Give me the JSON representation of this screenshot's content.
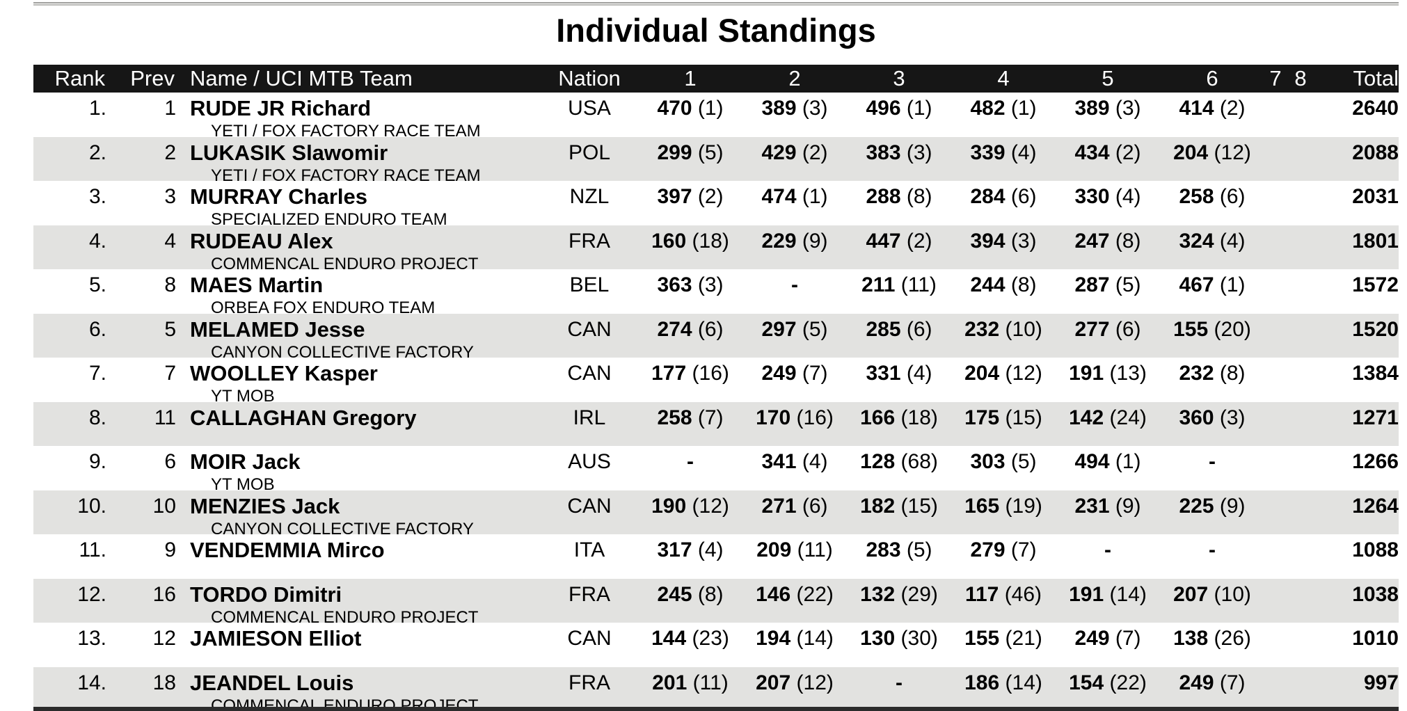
{
  "title": "Individual Standings",
  "columns": [
    "Rank",
    "Prev",
    "Name / UCI MTB Team",
    "Nation",
    "1",
    "2",
    "3",
    "4",
    "5",
    "6",
    "7",
    "8",
    "Total"
  ],
  "colors": {
    "header_bg": "#161616",
    "row_alt": "#e2e2e0",
    "text": "#000000"
  },
  "standings": [
    {
      "rank": "1.",
      "prev": "1",
      "name": "RUDE JR Richard",
      "team": "YETI / FOX FACTORY RACE TEAM",
      "nation": "USA",
      "races": [
        "470 (1)",
        "389 (3)",
        "496 (1)",
        "482 (1)",
        "389 (3)",
        "414 (2)"
      ],
      "race7": "",
      "race8": "",
      "total": "2640"
    },
    {
      "rank": "2.",
      "prev": "2",
      "name": "LUKASIK Slawomir",
      "team": "YETI / FOX FACTORY RACE TEAM",
      "nation": "POL",
      "races": [
        "299 (5)",
        "429 (2)",
        "383 (3)",
        "339 (4)",
        "434 (2)",
        "204 (12)"
      ],
      "race7": "",
      "race8": "",
      "total": "2088"
    },
    {
      "rank": "3.",
      "prev": "3",
      "name": "MURRAY Charles",
      "team": "SPECIALIZED ENDURO TEAM",
      "nation": "NZL",
      "races": [
        "397 (2)",
        "474 (1)",
        "288 (8)",
        "284 (6)",
        "330 (4)",
        "258 (6)"
      ],
      "race7": "",
      "race8": "",
      "total": "2031"
    },
    {
      "rank": "4.",
      "prev": "4",
      "name": "RUDEAU Alex",
      "team": "COMMENCAL ENDURO PROJECT",
      "nation": "FRA",
      "races": [
        "160 (18)",
        "229 (9)",
        "447 (2)",
        "394 (3)",
        "247 (8)",
        "324 (4)"
      ],
      "race7": "",
      "race8": "",
      "total": "1801"
    },
    {
      "rank": "5.",
      "prev": "8",
      "name": "MAES Martin",
      "team": "ORBEA FOX ENDURO TEAM",
      "nation": "BEL",
      "races": [
        "363 (3)",
        "-",
        "211 (11)",
        "244 (8)",
        "287 (5)",
        "467 (1)"
      ],
      "race7": "",
      "race8": "",
      "total": "1572"
    },
    {
      "rank": "6.",
      "prev": "5",
      "name": "MELAMED Jesse",
      "team": "CANYON COLLECTIVE FACTORY",
      "nation": "CAN",
      "races": [
        "274 (6)",
        "297 (5)",
        "285 (6)",
        "232 (10)",
        "277 (6)",
        "155 (20)"
      ],
      "race7": "",
      "race8": "",
      "total": "1520"
    },
    {
      "rank": "7.",
      "prev": "7",
      "name": "WOOLLEY Kasper",
      "team": "YT MOB",
      "nation": "CAN",
      "races": [
        "177 (16)",
        "249 (7)",
        "331 (4)",
        "204 (12)",
        "191 (13)",
        "232 (8)"
      ],
      "race7": "",
      "race8": "",
      "total": "1384"
    },
    {
      "rank": "8.",
      "prev": "11",
      "name": "CALLAGHAN Gregory",
      "team": "",
      "nation": "IRL",
      "races": [
        "258 (7)",
        "170 (16)",
        "166 (18)",
        "175 (15)",
        "142 (24)",
        "360 (3)"
      ],
      "race7": "",
      "race8": "",
      "total": "1271"
    },
    {
      "rank": "9.",
      "prev": "6",
      "name": "MOIR Jack",
      "team": "YT MOB",
      "nation": "AUS",
      "races": [
        "-",
        "341 (4)",
        "128 (68)",
        "303 (5)",
        "494 (1)",
        "-"
      ],
      "race7": "",
      "race8": "",
      "total": "1266"
    },
    {
      "rank": "10.",
      "prev": "10",
      "name": "MENZIES Jack",
      "team": "CANYON COLLECTIVE FACTORY",
      "nation": "CAN",
      "races": [
        "190 (12)",
        "271 (6)",
        "182 (15)",
        "165 (19)",
        "231 (9)",
        "225 (9)"
      ],
      "race7": "",
      "race8": "",
      "total": "1264"
    },
    {
      "rank": "11.",
      "prev": "9",
      "name": "VENDEMMIA Mirco",
      "team": "",
      "nation": "ITA",
      "races": [
        "317 (4)",
        "209 (11)",
        "283 (5)",
        "279 (7)",
        "-",
        "-"
      ],
      "race7": "",
      "race8": "",
      "total": "1088"
    },
    {
      "rank": "12.",
      "prev": "16",
      "name": "TORDO Dimitri",
      "team": "COMMENCAL ENDURO PROJECT",
      "nation": "FRA",
      "races": [
        "245 (8)",
        "146 (22)",
        "132 (29)",
        "117 (46)",
        "191 (14)",
        "207 (10)"
      ],
      "race7": "",
      "race8": "",
      "total": "1038"
    },
    {
      "rank": "13.",
      "prev": "12",
      "name": "JAMIESON Elliot",
      "team": "",
      "nation": "CAN",
      "races": [
        "144 (23)",
        "194 (14)",
        "130 (30)",
        "155 (21)",
        "249 (7)",
        "138 (26)"
      ],
      "race7": "",
      "race8": "",
      "total": "1010"
    },
    {
      "rank": "14.",
      "prev": "18",
      "name": "JEANDEL Louis",
      "team": "COMMENCAL ENDURO PROJECT",
      "nation": "FRA",
      "races": [
        "201 (11)",
        "207 (12)",
        "-",
        "186 (14)",
        "154 (22)",
        "249 (7)"
      ],
      "race7": "",
      "race8": "",
      "total": "997"
    }
  ]
}
